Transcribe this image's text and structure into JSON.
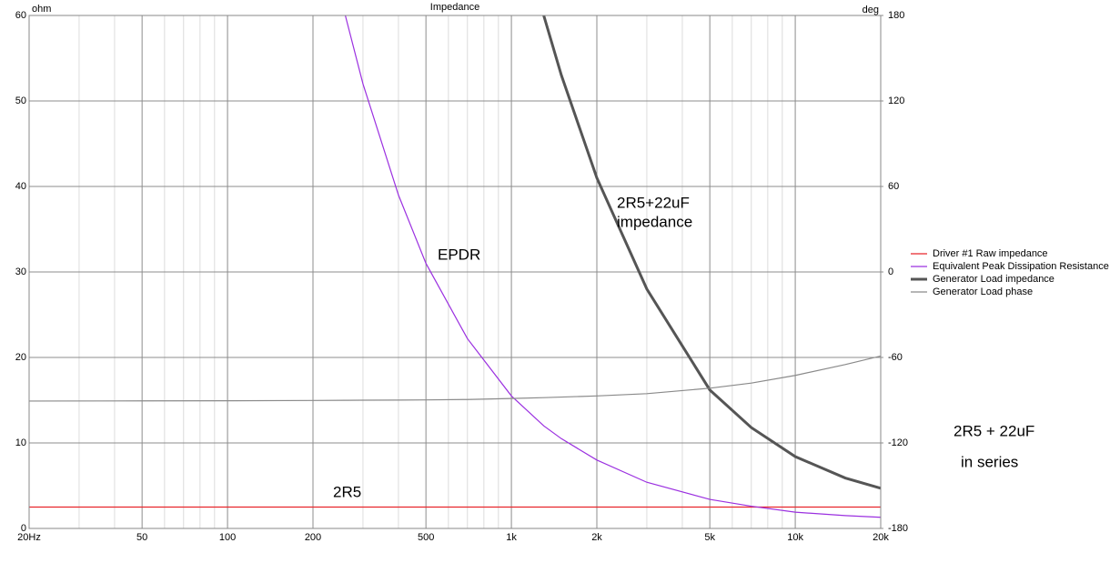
{
  "chart_data": {
    "type": "line",
    "title": "Impedance",
    "y_axis_label": "ohm",
    "y2_axis_label": "deg",
    "log_x": true,
    "grid": true,
    "legend": "right",
    "x": [
      20,
      50,
      100,
      200,
      260,
      300,
      400,
      500,
      700,
      1000,
      1300,
      1500,
      2000,
      3000,
      5000,
      7000,
      10000,
      15000,
      20000
    ],
    "xlim": [
      20,
      20000
    ],
    "xticks": [
      {
        "value": 20,
        "label": "20Hz"
      },
      50,
      100,
      200,
      500,
      {
        "value": 1000,
        "label": "1k"
      },
      {
        "value": 2000,
        "label": "2k"
      },
      {
        "value": 5000,
        "label": "5k"
      },
      {
        "value": 10000,
        "label": "10k"
      },
      {
        "value": 20000,
        "label": "20k"
      }
    ],
    "xminor_grid": [
      30,
      40,
      60,
      70,
      80,
      90,
      300,
      400,
      600,
      700,
      800,
      900,
      3000,
      4000,
      6000,
      7000,
      8000,
      9000
    ],
    "ylim": [
      0,
      60
    ],
    "yticks": [
      0,
      10,
      20,
      30,
      40,
      50,
      60
    ],
    "y2lim": [
      -180,
      180
    ],
    "y2ticks": [
      -180,
      -120,
      -60,
      0,
      60,
      120,
      180
    ],
    "series": [
      {
        "name": "Driver #1 Raw impedance",
        "color": "#e8262b",
        "line_width": 1.2,
        "values": [
          2.5,
          2.5,
          2.5,
          2.5,
          2.5,
          2.5,
          2.5,
          2.5,
          2.5,
          2.5,
          2.5,
          2.5,
          2.5,
          2.5,
          2.5,
          2.5,
          2.5,
          2.5,
          2.5
        ]
      },
      {
        "name": "Equivalent Peak Dissipation Resistance",
        "color": "#9b30e0",
        "line_width": 1.2,
        "values": [
          null,
          null,
          null,
          null,
          60,
          52,
          39,
          31,
          22.2,
          15.5,
          12,
          10.5,
          8,
          5.4,
          3.4,
          2.6,
          1.9,
          1.5,
          1.3
        ]
      },
      {
        "name": "Generator Load impedance",
        "color": "#555555",
        "line_width": 3,
        "values": [
          null,
          null,
          null,
          null,
          null,
          null,
          null,
          null,
          null,
          null,
          60,
          53,
          41,
          28,
          16.2,
          11.8,
          8.4,
          5.9,
          4.7
        ]
      },
      {
        "name": "Generator Load phase",
        "color": "#8a8a8a",
        "line_width": 1.2,
        "axis": "y2",
        "values": [
          -90.6,
          -90.5,
          -90.4,
          -90.2,
          -90.1,
          -90,
          -89.9,
          -89.8,
          -89.5,
          -88.8,
          -88.2,
          -87.8,
          -87,
          -85.4,
          -81.6,
          -78,
          -72.6,
          -65,
          -59
        ]
      }
    ],
    "annotations": [
      "EPDR",
      "2R5+22uF",
      "impedance",
      "2R5",
      "2R5 + 22uF",
      "in series"
    ]
  }
}
